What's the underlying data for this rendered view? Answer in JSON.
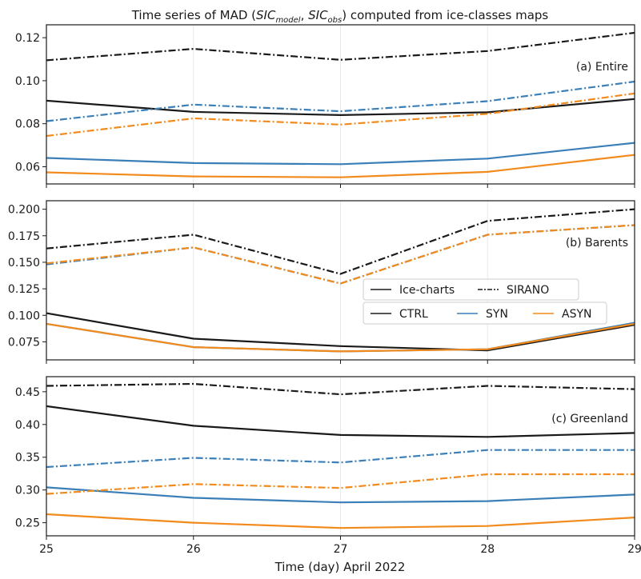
{
  "title_prefix": "Time series of MAD (",
  "title_var1": "SIC",
  "title_sub1": "model",
  "title_sep": ", ",
  "title_var2": "SIC",
  "title_sub2": "obs",
  "title_suffix": ") computed from ice-classes maps",
  "colors": {
    "CTRL": "#1a1a1a",
    "SYN": "#3a7fb8",
    "ASYN": "#f28a1c",
    "grid": "#e8e8e8"
  },
  "legend": {
    "style_entries": [
      {
        "label": "Ice-charts",
        "dash": "solid"
      },
      {
        "label": "SIRANO",
        "dash": "dashdot"
      }
    ],
    "color_entries": [
      {
        "label": "CTRL",
        "color": "#1a1a1a"
      },
      {
        "label": "SYN",
        "color": "#3a7fb8"
      },
      {
        "label": "ASYN",
        "color": "#f28a1c"
      }
    ]
  },
  "chart_data": [
    {
      "type": "line",
      "panel_label": "(a) Entire",
      "x": [
        25,
        26,
        27,
        28,
        29
      ],
      "ylim": [
        0.052,
        0.126
      ],
      "yticks": [
        0.06,
        0.08,
        0.1,
        0.12
      ],
      "ytick_labels": [
        "0.06",
        "0.08",
        "0.10",
        "0.12"
      ],
      "series": [
        {
          "name": "Ice-charts CTRL",
          "color": "#1a1a1a",
          "dash": "solid",
          "values": [
            0.0907,
            0.0855,
            0.084,
            0.0853,
            0.0915
          ]
        },
        {
          "name": "SIRANO CTRL",
          "color": "#1a1a1a",
          "dash": "dashdot",
          "values": [
            0.1095,
            0.1148,
            0.1097,
            0.1138,
            0.1223
          ]
        },
        {
          "name": "Ice-charts SYN",
          "color": "#3a7fb8",
          "dash": "solid",
          "values": [
            0.0641,
            0.0617,
            0.0612,
            0.0638,
            0.0711
          ]
        },
        {
          "name": "SIRANO SYN",
          "color": "#3a7fb8",
          "dash": "dashdot",
          "values": [
            0.0812,
            0.0889,
            0.0858,
            0.0905,
            0.0996
          ]
        },
        {
          "name": "Ice-charts ASYN",
          "color": "#f28a1c",
          "dash": "solid",
          "values": [
            0.0574,
            0.0555,
            0.0551,
            0.0576,
            0.0655
          ]
        },
        {
          "name": "SIRANO ASYN",
          "color": "#f28a1c",
          "dash": "dashdot",
          "values": [
            0.0743,
            0.0825,
            0.0796,
            0.0846,
            0.0941
          ]
        }
      ]
    },
    {
      "type": "line",
      "panel_label": "(b) Barents",
      "x": [
        25,
        26,
        27,
        28,
        29
      ],
      "ylim": [
        0.058,
        0.208
      ],
      "yticks": [
        0.075,
        0.1,
        0.125,
        0.15,
        0.175,
        0.2
      ],
      "ytick_labels": [
        "0.075",
        "0.100",
        "0.125",
        "0.150",
        "0.175",
        "0.200"
      ],
      "series": [
        {
          "name": "Ice-charts CTRL",
          "color": "#1a1a1a",
          "dash": "solid",
          "values": [
            0.102,
            0.078,
            0.071,
            0.067,
            0.091
          ]
        },
        {
          "name": "SIRANO CTRL",
          "color": "#1a1a1a",
          "dash": "dashdot",
          "values": [
            0.163,
            0.176,
            0.139,
            0.189,
            0.2
          ]
        },
        {
          "name": "Ice-charts SYN",
          "color": "#3a7fb8",
          "dash": "solid",
          "values": [
            0.092,
            0.07,
            0.066,
            0.068,
            0.093
          ]
        },
        {
          "name": "SIRANO SYN",
          "color": "#3a7fb8",
          "dash": "dashdot",
          "values": [
            0.148,
            0.164,
            0.13,
            0.176,
            0.185
          ]
        },
        {
          "name": "Ice-charts ASYN",
          "color": "#f28a1c",
          "dash": "solid",
          "values": [
            0.092,
            0.07,
            0.066,
            0.068,
            0.092
          ]
        },
        {
          "name": "SIRANO ASYN",
          "color": "#f28a1c",
          "dash": "dashdot",
          "values": [
            0.149,
            0.164,
            0.13,
            0.176,
            0.185
          ]
        }
      ]
    },
    {
      "type": "line",
      "panel_label": "(c) Greenland",
      "x": [
        25,
        26,
        27,
        28,
        29
      ],
      "ylim": [
        0.23,
        0.473
      ],
      "yticks": [
        0.25,
        0.3,
        0.35,
        0.4,
        0.45
      ],
      "ytick_labels": [
        "0.25",
        "0.30",
        "0.35",
        "0.40",
        "0.45"
      ],
      "series": [
        {
          "name": "Ice-charts CTRL",
          "color": "#1a1a1a",
          "dash": "solid",
          "values": [
            0.428,
            0.398,
            0.384,
            0.381,
            0.387
          ]
        },
        {
          "name": "SIRANO CTRL",
          "color": "#1a1a1a",
          "dash": "dashdot",
          "values": [
            0.459,
            0.462,
            0.446,
            0.459,
            0.454
          ]
        },
        {
          "name": "Ice-charts SYN",
          "color": "#3a7fb8",
          "dash": "solid",
          "values": [
            0.304,
            0.288,
            0.281,
            0.283,
            0.293
          ]
        },
        {
          "name": "SIRANO SYN",
          "color": "#3a7fb8",
          "dash": "dashdot",
          "values": [
            0.335,
            0.349,
            0.342,
            0.361,
            0.361
          ]
        },
        {
          "name": "Ice-charts ASYN",
          "color": "#f28a1c",
          "dash": "solid",
          "values": [
            0.263,
            0.25,
            0.242,
            0.245,
            0.258
          ]
        },
        {
          "name": "SIRANO ASYN",
          "color": "#f28a1c",
          "dash": "dashdot",
          "values": [
            0.294,
            0.309,
            0.303,
            0.324,
            0.324
          ]
        }
      ]
    }
  ],
  "xaxis": {
    "ticks": [
      25,
      26,
      27,
      28,
      29
    ],
    "tick_labels": [
      "25",
      "26",
      "27",
      "28",
      "29"
    ],
    "label": "Time (day) April 2022",
    "xlim": [
      25,
      29
    ]
  }
}
